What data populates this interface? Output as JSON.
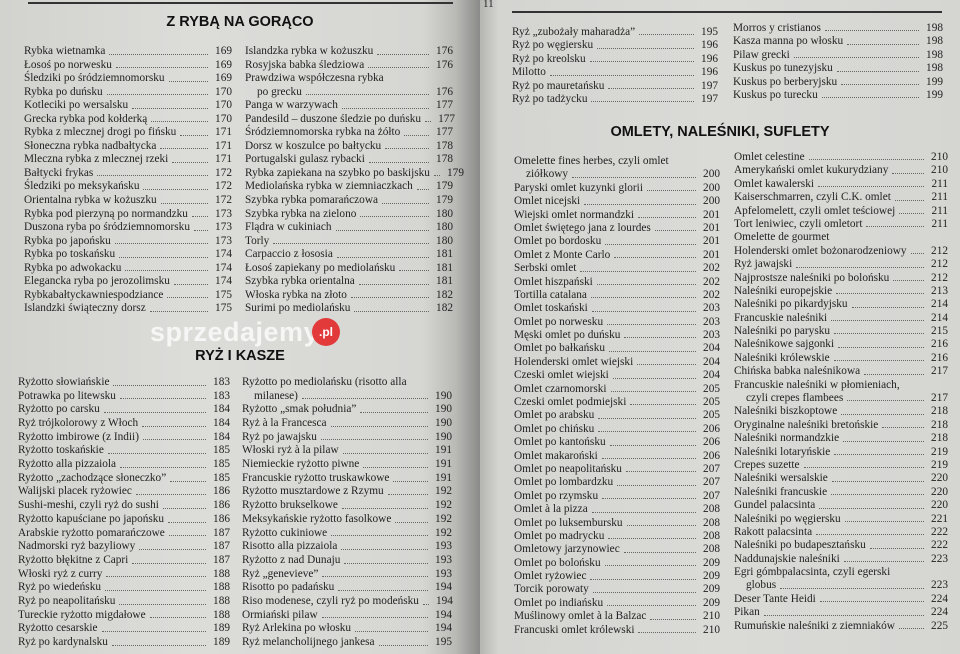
{
  "left_page": {
    "sections": [
      {
        "title": "Z RYBĄ NA GORĄCO",
        "columns": [
          [
            {
              "text": "Rybka wietnamka",
              "page": "169"
            },
            {
              "text": "Łosoś po norwesku",
              "page": "169"
            },
            {
              "text": "Śledziki po śródziemnomorsku",
              "page": "169"
            },
            {
              "text": "Rybka po duńsku",
              "page": "170"
            },
            {
              "text": "Kotleciki po wersalsku",
              "page": "170"
            },
            {
              "text": "Grecka rybka pod kołderką",
              "page": "170"
            },
            {
              "text": "Rybka z mlecznej drogi po fińsku",
              "page": "171"
            },
            {
              "text": "Słoneczna rybka nadbałtycka",
              "page": "171"
            },
            {
              "text": "Mleczna rybka z mlecznej rzeki",
              "page": "171"
            },
            {
              "text": "Bałtycki frykas",
              "page": "172"
            },
            {
              "text": "Śledziki po meksykańsku",
              "page": "172"
            },
            {
              "text": "Orientalna rybka w kożuszku",
              "page": "172"
            },
            {
              "text": "Rybka pod pierzyną po normandzku",
              "page": "173"
            },
            {
              "text": "Duszona ryba po śródziemnomorsku",
              "page": "173"
            },
            {
              "text": "Rybka po japońsku",
              "page": "173"
            },
            {
              "text": "Rybka po toskańsku",
              "page": "174"
            },
            {
              "text": "Rybka po adwokacku",
              "page": "174"
            },
            {
              "text": "Elegancka ryba po jerozolimsku",
              "page": "174"
            },
            {
              "text": "Rybkabałtyckawniespodziance",
              "page": "175"
            },
            {
              "text": "Islandzki świąteczny dorsz",
              "page": "175"
            }
          ],
          [
            {
              "text": "Islandzka rybka w kożuszku",
              "page": "176"
            },
            {
              "text": "Rosyjska babka śledziowa",
              "page": "176"
            },
            {
              "text": "Prawdziwa współczesna rybka",
              "cont": "po grecku",
              "page": "176"
            },
            {
              "text": "Panga w warzywach",
              "page": "177"
            },
            {
              "text": "Pandesild – duszone śledzie po duńsku",
              "page": "177"
            },
            {
              "text": "Śródziemnomorska rybka na żółto",
              "page": "177"
            },
            {
              "text": "Dorsz w koszulce po bałtycku",
              "page": "178"
            },
            {
              "text": "Portugalski gulasz rybacki",
              "page": "178"
            },
            {
              "text": "Rybka zapiekana na szybko po baskijsku",
              "page": "179"
            },
            {
              "text": "Mediolańska rybka w ziemniaczkach",
              "page": "179"
            },
            {
              "text": "Szybka rybka pomarańczowa",
              "page": "179"
            },
            {
              "text": "Szybka rybka na zielono",
              "page": "180"
            },
            {
              "text": "Flądra w cukiniach",
              "page": "180"
            },
            {
              "text": "Torly",
              "page": "180"
            },
            {
              "text": "Carpaccio z łososia",
              "page": "181"
            },
            {
              "text": "Łosoś zapiekany po mediolańsku",
              "page": "181"
            },
            {
              "text": "Szybka rybka orientalna",
              "page": "181"
            },
            {
              "text": "Włoska rybka na złoto",
              "page": "182"
            },
            {
              "text": "Surimi po mediolańsku",
              "page": "182"
            }
          ]
        ]
      },
      {
        "title": "RYŻ I KASZE",
        "columns": [
          [
            {
              "text": "Ryżotto słowiańskie",
              "page": "183"
            },
            {
              "text": "Potrawka po litewsku",
              "page": "183"
            },
            {
              "text": "Ryżotto po carsku",
              "page": "184"
            },
            {
              "text": "Ryż trójkolorowy z Włoch",
              "page": "184"
            },
            {
              "text": "Ryżotto imbirowe (z Indii)",
              "page": "184"
            },
            {
              "text": "Ryżotto toskańskie",
              "page": "185"
            },
            {
              "text": "Ryżotto alla pizzaiola",
              "page": "185"
            },
            {
              "text": "Ryżotto „zachodzące słoneczko”",
              "page": "185"
            },
            {
              "text": "Walijski placek ryżowiec",
              "page": "186"
            },
            {
              "text": "Sushi-meshi, czyli ryż do sushi",
              "page": "186"
            },
            {
              "text": "Ryżotto kapuściane po japońsku",
              "page": "186"
            },
            {
              "text": "Arabskie ryżotto pomarańczowe",
              "page": "187"
            },
            {
              "text": "Nadmorski ryż bazyliowy",
              "page": "187"
            },
            {
              "text": "Ryżotto błękitne z Capri",
              "page": "187"
            },
            {
              "text": "Włoski ryż z curry",
              "page": "188"
            },
            {
              "text": "Ryż po wiedeńsku",
              "page": "188"
            },
            {
              "text": "Ryż po neapolitańsku",
              "page": "188"
            },
            {
              "text": "Tureckie ryżotto migdałowe",
              "page": "188"
            },
            {
              "text": "Ryżotto cesarskie",
              "page": "189"
            },
            {
              "text": "Ryż po kardynalsku",
              "page": "189"
            }
          ],
          [
            {
              "text": "Ryżotto po mediolańsku (risotto alla",
              "cont": "milanese)",
              "page": "190"
            },
            {
              "text": "Ryżotto „smak południa”",
              "page": "190"
            },
            {
              "text": "Ryż à la Francesca",
              "page": "190"
            },
            {
              "text": "Ryż po jawajsku",
              "page": "190"
            },
            {
              "text": "Włoski ryż à la pilaw",
              "page": "191"
            },
            {
              "text": "Niemieckie ryżotto piwne",
              "page": "191"
            },
            {
              "text": "Francuskie ryżotto truskawkowe",
              "page": "191"
            },
            {
              "text": "Ryżotto musztardowe z Rzymu",
              "page": "192"
            },
            {
              "text": "Ryżotto brukselkowe",
              "page": "192"
            },
            {
              "text": "Meksykańskie ryżotto fasolkowe",
              "page": "192"
            },
            {
              "text": "Ryżotto cukiniowe",
              "page": "192"
            },
            {
              "text": "Risotto alla pizzaiola",
              "page": "193"
            },
            {
              "text": "Ryżotto z nad Dunaju",
              "page": "193"
            },
            {
              "text": "Ryż „genevieve”",
              "page": "193"
            },
            {
              "text": "Risotto po padańsku",
              "page": "194"
            },
            {
              "text": "Riso modenese, czyli ryż po modeńsku",
              "page": "194"
            },
            {
              "text": "Ormiański pilaw",
              "page": "194"
            },
            {
              "text": "Ryż Arlekina po włosku",
              "page": "194"
            },
            {
              "text": "Ryż melancholijnego jankesa",
              "page": "195"
            }
          ]
        ]
      }
    ]
  },
  "right_page": {
    "page_number": "11",
    "continued": [
      [
        {
          "text": "Ryż „zubożały maharadża”",
          "page": "195"
        },
        {
          "text": "Ryż po węgiersku",
          "page": "196"
        },
        {
          "text": "Ryż po kreolsku",
          "page": "196"
        },
        {
          "text": "Milotto",
          "page": "196"
        },
        {
          "text": "Ryż po mauretańsku",
          "page": "197"
        },
        {
          "text": "Ryż po tadżycku",
          "page": "197"
        }
      ],
      [
        {
          "text": "Morros y cristianos",
          "page": "198"
        },
        {
          "text": "Kasza manna po włosku",
          "page": "198"
        },
        {
          "text": "Pilaw grecki",
          "page": "198"
        },
        {
          "text": "Kuskus po tunezyjsku",
          "page": "198"
        },
        {
          "text": "Kuskus po berberyjsku",
          "page": "199"
        },
        {
          "text": "Kuskus po turecku",
          "page": "199"
        }
      ]
    ],
    "section": {
      "title": "OMLETY, NALEŚNIKI, SUFLETY",
      "columns": [
        [
          {
            "text": "Omelette fines herbes, czyli omlet",
            "cont": "ziółkowy",
            "page": "200"
          },
          {
            "text": "Paryski omlet kuzynki glorii",
            "page": "200"
          },
          {
            "text": "Omlet nicejski",
            "page": "200"
          },
          {
            "text": "Wiejski omlet normandzki",
            "page": "201"
          },
          {
            "text": "Omlet świętego jana z lourdes",
            "page": "201"
          },
          {
            "text": "Omlet po bordosku",
            "page": "201"
          },
          {
            "text": "Omlet z Monte Carlo",
            "page": "201"
          },
          {
            "text": "Serbski omlet",
            "page": "202"
          },
          {
            "text": "Omlet hiszpański",
            "page": "202"
          },
          {
            "text": "Tortilla catalana",
            "page": "202"
          },
          {
            "text": "Omlet toskański",
            "page": "203"
          },
          {
            "text": "Omlet po norwesku",
            "page": "203"
          },
          {
            "text": "Męski omlet po duńsku",
            "page": "203"
          },
          {
            "text": "Omlet po bałkańsku",
            "page": "204"
          },
          {
            "text": "Holenderski omlet wiejski",
            "page": "204"
          },
          {
            "text": "Czeski omlet wiejski",
            "page": "204"
          },
          {
            "text": "Omlet czarnomorski",
            "page": "205"
          },
          {
            "text": "Czeski omlet podmiejski",
            "page": "205"
          },
          {
            "text": "Omlet po arabsku",
            "page": "205"
          },
          {
            "text": "Omlet po chińsku",
            "page": "206"
          },
          {
            "text": "Omlet po kantońsku",
            "page": "206"
          },
          {
            "text": "Omlet makaroński",
            "page": "206"
          },
          {
            "text": "Omlet po neapolitańsku",
            "page": "207"
          },
          {
            "text": "Omlet po lombardzku",
            "page": "207"
          },
          {
            "text": "Omlet po rzymsku",
            "page": "207"
          },
          {
            "text": "Omlet à la pizza",
            "page": "208"
          },
          {
            "text": "Omlet po luksembursku",
            "page": "208"
          },
          {
            "text": "Omlet po madrycku",
            "page": "208"
          },
          {
            "text": "Omletowy jarzynowiec",
            "page": "208"
          },
          {
            "text": "Omlet po bolońsku",
            "page": "209"
          },
          {
            "text": "Omlet ryżowiec",
            "page": "209"
          },
          {
            "text": "Torcik porowaty",
            "page": "209"
          },
          {
            "text": "Omlet po indiańsku",
            "page": "209"
          },
          {
            "text": "Muślinowy omlet à la Balzac",
            "page": "210"
          },
          {
            "text": "Francuski omlet królewski",
            "page": "210"
          }
        ],
        [
          {
            "text": "Omlet celestine",
            "page": "210"
          },
          {
            "text": "Amerykański omlet kukurydziany",
            "page": "210"
          },
          {
            "text": "Omlet kawalerski",
            "page": "211"
          },
          {
            "text": "Kaiserschmarren, czyli C.K. omlet",
            "page": "211"
          },
          {
            "text": "Apfelomelett, czyli omlet teściowej",
            "page": "211"
          },
          {
            "text": "Tort leniwiec, czyli omletort",
            "page": "211"
          },
          {
            "text": "Omelette de gourmet",
            "page": ""
          },
          {
            "text": "Holenderski omlet bożonarodzeniowy",
            "page": "212"
          },
          {
            "text": "Ryż jawajski",
            "page": "212"
          },
          {
            "text": "Najprostsze naleśniki po bolońsku",
            "page": "212"
          },
          {
            "text": "Naleśniki europejskie",
            "page": "213"
          },
          {
            "text": "Naleśniki po pikardyjsku",
            "page": "214"
          },
          {
            "text": "Francuskie naleśniki",
            "page": "214"
          },
          {
            "text": "Naleśniki po parysku",
            "page": "215"
          },
          {
            "text": "Naleśnikowe sajgonki",
            "page": "216"
          },
          {
            "text": "Naleśniki królewskie",
            "page": "216"
          },
          {
            "text": "Chińska babka naleśnikowa",
            "page": "217"
          },
          {
            "text": "Francuskie naleśniki w płomieniach,",
            "cont": "czyli crepes flambees",
            "page": "217"
          },
          {
            "text": "Naleśniki biszkoptowe",
            "page": "218"
          },
          {
            "text": "Oryginalne naleśniki bretońskie",
            "page": "218"
          },
          {
            "text": "Naleśniki normandzkie",
            "page": "218"
          },
          {
            "text": "Naleśniki lotaryńskie",
            "page": "219"
          },
          {
            "text": "Crepes suzette",
            "page": "219"
          },
          {
            "text": "Naleśniki wersalskie",
            "page": "220"
          },
          {
            "text": "Naleśniki francuskie",
            "page": "220"
          },
          {
            "text": "Gundel palacsinta",
            "page": "220"
          },
          {
            "text": "Naleśniki po węgiersku",
            "page": "221"
          },
          {
            "text": "Rakott palacsinta",
            "page": "222"
          },
          {
            "text": "Naleśniki po budapesztańsku",
            "page": "222"
          },
          {
            "text": "Naddunajskie naleśniki",
            "page": "223"
          },
          {
            "text": "Egri gómbpalacsinta, czyli egerski",
            "cont": "globus",
            "page": "223"
          },
          {
            "text": "Deser Tante Heidi",
            "page": "224"
          },
          {
            "text": "Pikan",
            "page": "224"
          },
          {
            "text": "Rumuńskie naleśniki z ziemniaków",
            "page": "225"
          }
        ]
      ]
    }
  },
  "watermark": {
    "text": "sprzedajemy",
    "badge": ".pl",
    "color": "#e23a3a"
  }
}
